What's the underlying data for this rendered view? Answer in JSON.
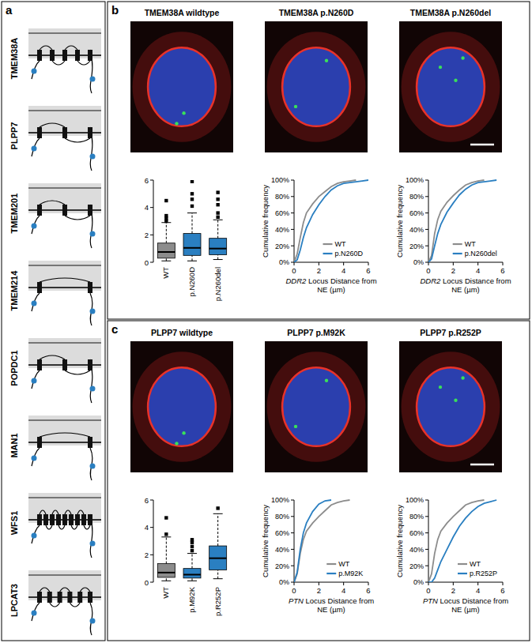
{
  "panel_labels": [
    "a",
    "b",
    "c"
  ],
  "proteins": [
    {
      "name": "TMEM38A",
      "transmembrane_segments": 5
    },
    {
      "name": "PLPP7",
      "transmembrane_segments": 3
    },
    {
      "name": "TMEM201",
      "transmembrane_segments": 3
    },
    {
      "name": "TMEM214",
      "transmembrane_segments": 2
    },
    {
      "name": "POPDC1",
      "transmembrane_segments": 3
    },
    {
      "name": "MAN1",
      "transmembrane_segments": 2
    },
    {
      "name": "WFS1",
      "transmembrane_segments": 9
    },
    {
      "name": "LPCAT3",
      "transmembrane_segments": 6
    }
  ],
  "images": {
    "b": [
      "TMEM38A wildtype",
      "TMEM38A p.N260D",
      "TMEM38A p.N260del"
    ],
    "c": [
      "PLPP7 wildtype",
      "PLPP7 p.M92K",
      "PLPP7 p.R252P"
    ]
  },
  "chart_data": [
    {
      "type": "box",
      "categories": [
        "WT",
        "p.N260D",
        "p.N260del"
      ],
      "colors": [
        "#8c8c8c",
        "#2a7fc1",
        "#2a7fc1"
      ],
      "ylim": [
        0,
        6
      ],
      "yticks": [
        0,
        2,
        4,
        6
      ],
      "stats": [
        {
          "min": 0.1,
          "q1": 0.3,
          "median": 0.75,
          "q3": 1.4,
          "max": 2.9,
          "outliers": [
            3.0,
            3.2,
            3.4,
            4.5
          ]
        },
        {
          "min": 0.1,
          "q1": 0.5,
          "median": 1.05,
          "q3": 2.1,
          "max": 3.6,
          "outliers": [
            4.1,
            4.6,
            5.0,
            5.9
          ]
        },
        {
          "min": 0.2,
          "q1": 0.55,
          "median": 1.0,
          "q3": 1.75,
          "max": 3.1,
          "outliers": [
            3.3,
            3.6,
            4.2,
            4.6,
            5.1
          ]
        }
      ]
    },
    {
      "type": "line",
      "x": [
        0,
        0.25,
        0.5,
        0.75,
        1,
        1.5,
        2,
        2.5,
        3,
        3.5,
        4,
        4.5,
        5,
        5.5,
        6
      ],
      "xlim": [
        0,
        6
      ],
      "xticks": [
        0,
        2,
        4,
        6
      ],
      "ylim": [
        0,
        100
      ],
      "yticks": [
        {
          "value": 0,
          "label": "0%"
        },
        {
          "value": 20,
          "label": "20%"
        },
        {
          "value": 40,
          "label": "40%"
        },
        {
          "value": 60,
          "label": "60%"
        },
        {
          "value": 80,
          "label": "80%"
        },
        {
          "value": 100,
          "label": "100%"
        }
      ],
      "x_label": "DDR2 Locus Distance from NE (µm)",
      "y_label": "Cumulative frequency",
      "legend": "lower right",
      "series": [
        {
          "name": "WT",
          "color": "#8c8c8c",
          "values": [
            0,
            10,
            30,
            48,
            60,
            71,
            80,
            86,
            92,
            96,
            98,
            99,
            100,
            null,
            null
          ]
        },
        {
          "name": "p.N260D",
          "color": "#2a7fc1",
          "values": [
            0,
            3,
            15,
            30,
            42,
            58,
            70,
            80,
            88,
            93,
            96,
            97,
            98,
            99,
            100
          ]
        }
      ]
    },
    {
      "type": "line",
      "x": [
        0,
        0.25,
        0.5,
        0.75,
        1,
        1.5,
        2,
        2.5,
        3,
        3.5,
        4,
        4.5,
        5,
        5.5,
        6
      ],
      "xlim": [
        0,
        6
      ],
      "xticks": [
        0,
        2,
        4,
        6
      ],
      "ylim": [
        0,
        100
      ],
      "yticks": [
        {
          "value": 0,
          "label": "0%"
        },
        {
          "value": 20,
          "label": "20%"
        },
        {
          "value": 40,
          "label": "40%"
        },
        {
          "value": 60,
          "label": "60%"
        },
        {
          "value": 80,
          "label": "80%"
        },
        {
          "value": 100,
          "label": "100%"
        }
      ],
      "x_label": "DDR2 Locus Distance from NE (µm)",
      "y_label": "Cumulative frequency",
      "legend": "lower right",
      "series": [
        {
          "name": "WT",
          "color": "#8c8c8c",
          "values": [
            0,
            8,
            35,
            52,
            62,
            73,
            81,
            88,
            94,
            97,
            99,
            100,
            null,
            null,
            null
          ]
        },
        {
          "name": "p.N260del",
          "color": "#2a7fc1",
          "values": [
            0,
            4,
            20,
            35,
            46,
            61,
            72,
            82,
            89,
            94,
            97,
            98,
            99,
            100,
            null
          ]
        }
      ]
    },
    {
      "type": "box",
      "categories": [
        "WT",
        "p.M92K",
        "p.R252P"
      ],
      "colors": [
        "#8c8c8c",
        "#2a7fc1",
        "#2a7fc1"
      ],
      "ylim": [
        0,
        6
      ],
      "yticks": [
        0,
        2,
        4,
        6
      ],
      "stats": [
        {
          "min": 0.1,
          "q1": 0.35,
          "median": 0.7,
          "q3": 1.35,
          "max": 3.3,
          "outliers": [
            3.5,
            4.7
          ]
        },
        {
          "min": 0.1,
          "q1": 0.3,
          "median": 0.55,
          "q3": 1.0,
          "max": 2.1,
          "outliers": [
            2.3,
            2.6,
            2.9,
            3.1
          ]
        },
        {
          "min": 0.25,
          "q1": 0.9,
          "median": 1.75,
          "q3": 2.65,
          "max": 5.0,
          "outliers": [
            5.4
          ]
        }
      ]
    },
    {
      "type": "line",
      "x": [
        0,
        0.25,
        0.5,
        0.75,
        1,
        1.5,
        2,
        2.5,
        3,
        3.5,
        4,
        4.5,
        5,
        5.5,
        6
      ],
      "xlim": [
        0,
        6
      ],
      "xticks": [
        0,
        2,
        4,
        6
      ],
      "ylim": [
        0,
        100
      ],
      "yticks": [
        {
          "value": 0,
          "label": "0%"
        },
        {
          "value": 20,
          "label": "20%"
        },
        {
          "value": 40,
          "label": "40%"
        },
        {
          "value": 60,
          "label": "60%"
        },
        {
          "value": 80,
          "label": "80%"
        },
        {
          "value": 100,
          "label": "100%"
        }
      ],
      "x_label": "PTN Locus Distance from NE (µm)",
      "y_label": "Cumulative frequency",
      "legend": "lower right",
      "series": [
        {
          "name": "WT",
          "color": "#8c8c8c",
          "values": [
            0,
            10,
            35,
            52,
            62,
            72,
            80,
            87,
            94,
            97,
            99,
            100,
            null,
            null,
            null
          ]
        },
        {
          "name": "p.M92K",
          "color": "#2a7fc1",
          "values": [
            0,
            12,
            40,
            60,
            72,
            86,
            95,
            99,
            100,
            null,
            null,
            null,
            null,
            null,
            null
          ]
        }
      ]
    },
    {
      "type": "line",
      "x": [
        0,
        0.25,
        0.5,
        0.75,
        1,
        1.5,
        2,
        2.5,
        3,
        3.5,
        4,
        4.5,
        5,
        5.5,
        6
      ],
      "xlim": [
        0,
        6
      ],
      "xticks": [
        0,
        2,
        4,
        6
      ],
      "ylim": [
        0,
        100
      ],
      "yticks": [
        {
          "value": 0,
          "label": "0%"
        },
        {
          "value": 20,
          "label": "20%"
        },
        {
          "value": 40,
          "label": "40%"
        },
        {
          "value": 60,
          "label": "60%"
        },
        {
          "value": 80,
          "label": "80%"
        },
        {
          "value": 100,
          "label": "100%"
        }
      ],
      "x_label": "PTN Locus Distance from NE (µm)",
      "y_label": "Cumulative frequency",
      "legend": "lower right",
      "series": [
        {
          "name": "WT",
          "color": "#8c8c8c",
          "values": [
            0,
            10,
            35,
            52,
            62,
            72,
            80,
            87,
            94,
            97,
            99,
            100,
            null,
            null,
            null
          ]
        },
        {
          "name": "p.R252P",
          "color": "#2a7fc1",
          "values": [
            0,
            0,
            5,
            15,
            25,
            40,
            55,
            68,
            78,
            86,
            92,
            96,
            98,
            100,
            null
          ]
        }
      ]
    }
  ]
}
